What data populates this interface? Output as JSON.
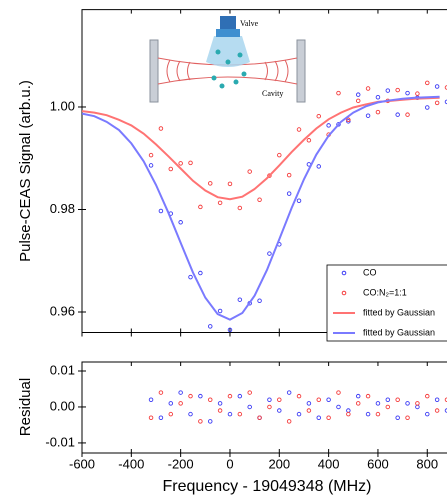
{
  "chart_data": [
    {
      "type": "scatter",
      "ylabel": "Pulse-CEAS Signal (arb.u.)",
      "annotations": [
        "Valve",
        "Cavity"
      ],
      "xlim": [
        -600,
        880
      ],
      "xticks": [
        -600,
        -400,
        -200,
        0,
        200,
        400,
        600,
        800
      ],
      "ylim": [
        0.956,
        1.019
      ],
      "yticks": [
        {
          "value": 1.0,
          "label": "1.00"
        },
        0.98,
        0.96
      ],
      "legend": "lower right",
      "series": [
        {
          "name": "CO",
          "color": "#3b3bf5",
          "mode": "markers",
          "x": [
            -320,
            -280,
            -240,
            -200,
            -160,
            -120,
            -80,
            -40,
            0,
            40,
            80,
            120,
            160,
            200,
            240,
            280,
            320,
            360,
            400,
            440,
            480,
            520,
            560,
            600,
            640,
            680,
            720,
            760,
            800,
            840,
            880
          ],
          "values": [
            0.9886,
            0.9797,
            0.9792,
            0.9775,
            0.9668,
            0.9676,
            0.9572,
            0.9602,
            0.9565,
            0.9624,
            0.9617,
            0.9622,
            0.9714,
            0.9732,
            0.9831,
            0.9817,
            0.9888,
            0.9884,
            0.9964,
            0.9966,
            0.9972,
            1.0024,
            0.9983,
            1.0019,
            1.0032,
            0.9985,
            1.0027,
            1.0018,
            0.9999,
            1.004,
            1.001
          ]
        },
        {
          "name": "CO:N₂=1:1",
          "color": "#f53b3b",
          "mode": "markers",
          "x": [
            -320,
            -280,
            -240,
            -200,
            -160,
            -120,
            -80,
            -40,
            0,
            40,
            80,
            120,
            160,
            200,
            240,
            280,
            320,
            360,
            400,
            440,
            480,
            520,
            560,
            600,
            640,
            680,
            720,
            760,
            800,
            840,
            880
          ],
          "values": [
            0.9906,
            0.9958,
            0.9879,
            0.989,
            0.9891,
            0.9805,
            0.9851,
            0.9813,
            0.985,
            0.9803,
            0.9874,
            0.9819,
            0.9866,
            0.9906,
            0.9867,
            0.9956,
            0.9935,
            0.9982,
            0.9946,
            1.0027,
            0.9975,
            1.0012,
            1.0036,
            0.999,
            1.0012,
            1.0033,
            0.9985,
            1.0026,
            1.0047,
            1.0008,
            1.0038
          ]
        },
        {
          "name": "fitted by Gaussian",
          "color": "#ff7373",
          "mode": "line",
          "x": [
            -600,
            -550,
            -500,
            -450,
            -400,
            -350,
            -300,
            -250,
            -200,
            -150,
            -100,
            -50,
            0,
            50,
            100,
            150,
            200,
            250,
            300,
            350,
            400,
            450,
            500,
            550,
            600,
            650,
            700,
            750,
            800,
            850
          ],
          "values": [
            0.9992,
            0.9989,
            0.9984,
            0.9975,
            0.9964,
            0.9948,
            0.9927,
            0.9904,
            0.988,
            0.9856,
            0.9837,
            0.9824,
            0.982,
            0.9825,
            0.984,
            0.9861,
            0.9886,
            0.9912,
            0.9936,
            0.9958,
            0.9976,
            0.9989,
            0.9999,
            1.0005,
            1.001,
            1.0012,
            1.0014,
            1.0016,
            1.0017,
            1.0018
          ]
        },
        {
          "name": "fitted by Gaussian",
          "color": "#7a7aff",
          "mode": "line",
          "x": [
            -600,
            -550,
            -500,
            -450,
            -400,
            -350,
            -300,
            -250,
            -200,
            -150,
            -100,
            -50,
            0,
            50,
            100,
            150,
            200,
            250,
            300,
            350,
            400,
            450,
            500,
            550,
            600,
            650,
            700,
            750,
            800,
            850
          ],
          "values": [
            0.9987,
            0.9982,
            0.9971,
            0.9955,
            0.9929,
            0.9894,
            0.9848,
            0.9794,
            0.9735,
            0.9677,
            0.9628,
            0.9596,
            0.9585,
            0.9598,
            0.9632,
            0.9682,
            0.9742,
            0.9803,
            0.9859,
            0.9907,
            0.9944,
            0.9971,
            0.9989,
            1.0001,
            1.0009,
            1.0013,
            1.0016,
            1.0018,
            1.0019,
            1.002
          ]
        }
      ]
    },
    {
      "type": "scatter",
      "ylabel": "Residual",
      "xlabel": "Frequency - 19049348 (MHz)",
      "xlim": [
        -600,
        880
      ],
      "xticks": [
        -600,
        -400,
        -200,
        0,
        200,
        400,
        600,
        800
      ],
      "ylim": [
        -0.0128,
        0.0125
      ],
      "yticks": [
        0.01,
        {
          "value": 0,
          "label": "0.00"
        },
        -0.01
      ],
      "series": [
        {
          "color": "#3b3bf5",
          "mode": "markers",
          "x": [
            -320,
            -280,
            -240,
            -200,
            -160,
            -120,
            -80,
            -40,
            0,
            40,
            80,
            120,
            160,
            200,
            240,
            280,
            320,
            360,
            400,
            440,
            480,
            520,
            560,
            600,
            640,
            680,
            720,
            760,
            800,
            840,
            880
          ],
          "values": [
            0.002,
            -0.003,
            0.001,
            0.004,
            -0.002,
            0.003,
            -0.004,
            0.001,
            -0.002,
            0.003,
            0,
            -0.003,
            0.002,
            -0.001,
            0.004,
            -0.002,
            0.001,
            -0.003,
            0.002,
            0,
            -0.001,
            0.003,
            -0.002,
            0.001,
            0.002,
            -0.003,
            0.001,
            0,
            -0.002,
            0.002,
            -0.001
          ]
        },
        {
          "color": "#f53b3b",
          "mode": "markers",
          "x": [
            -320,
            -280,
            -240,
            -200,
            -160,
            -120,
            -80,
            -40,
            0,
            40,
            80,
            120,
            160,
            200,
            240,
            280,
            320,
            360,
            400,
            440,
            480,
            520,
            560,
            600,
            640,
            680,
            720,
            760,
            800,
            840,
            880
          ],
          "values": [
            -0.003,
            0.004,
            -0.002,
            0.001,
            0.003,
            -0.004,
            0.002,
            -0.001,
            0.003,
            -0.002,
            0.004,
            -0.003,
            0,
            0.002,
            -0.004,
            0.003,
            -0.001,
            0.002,
            -0.003,
            0.004,
            -0.002,
            0.001,
            0.003,
            -0.002,
            0,
            0.002,
            -0.003,
            0.001,
            0.003,
            -0.001,
            0.002
          ]
        }
      ]
    }
  ]
}
